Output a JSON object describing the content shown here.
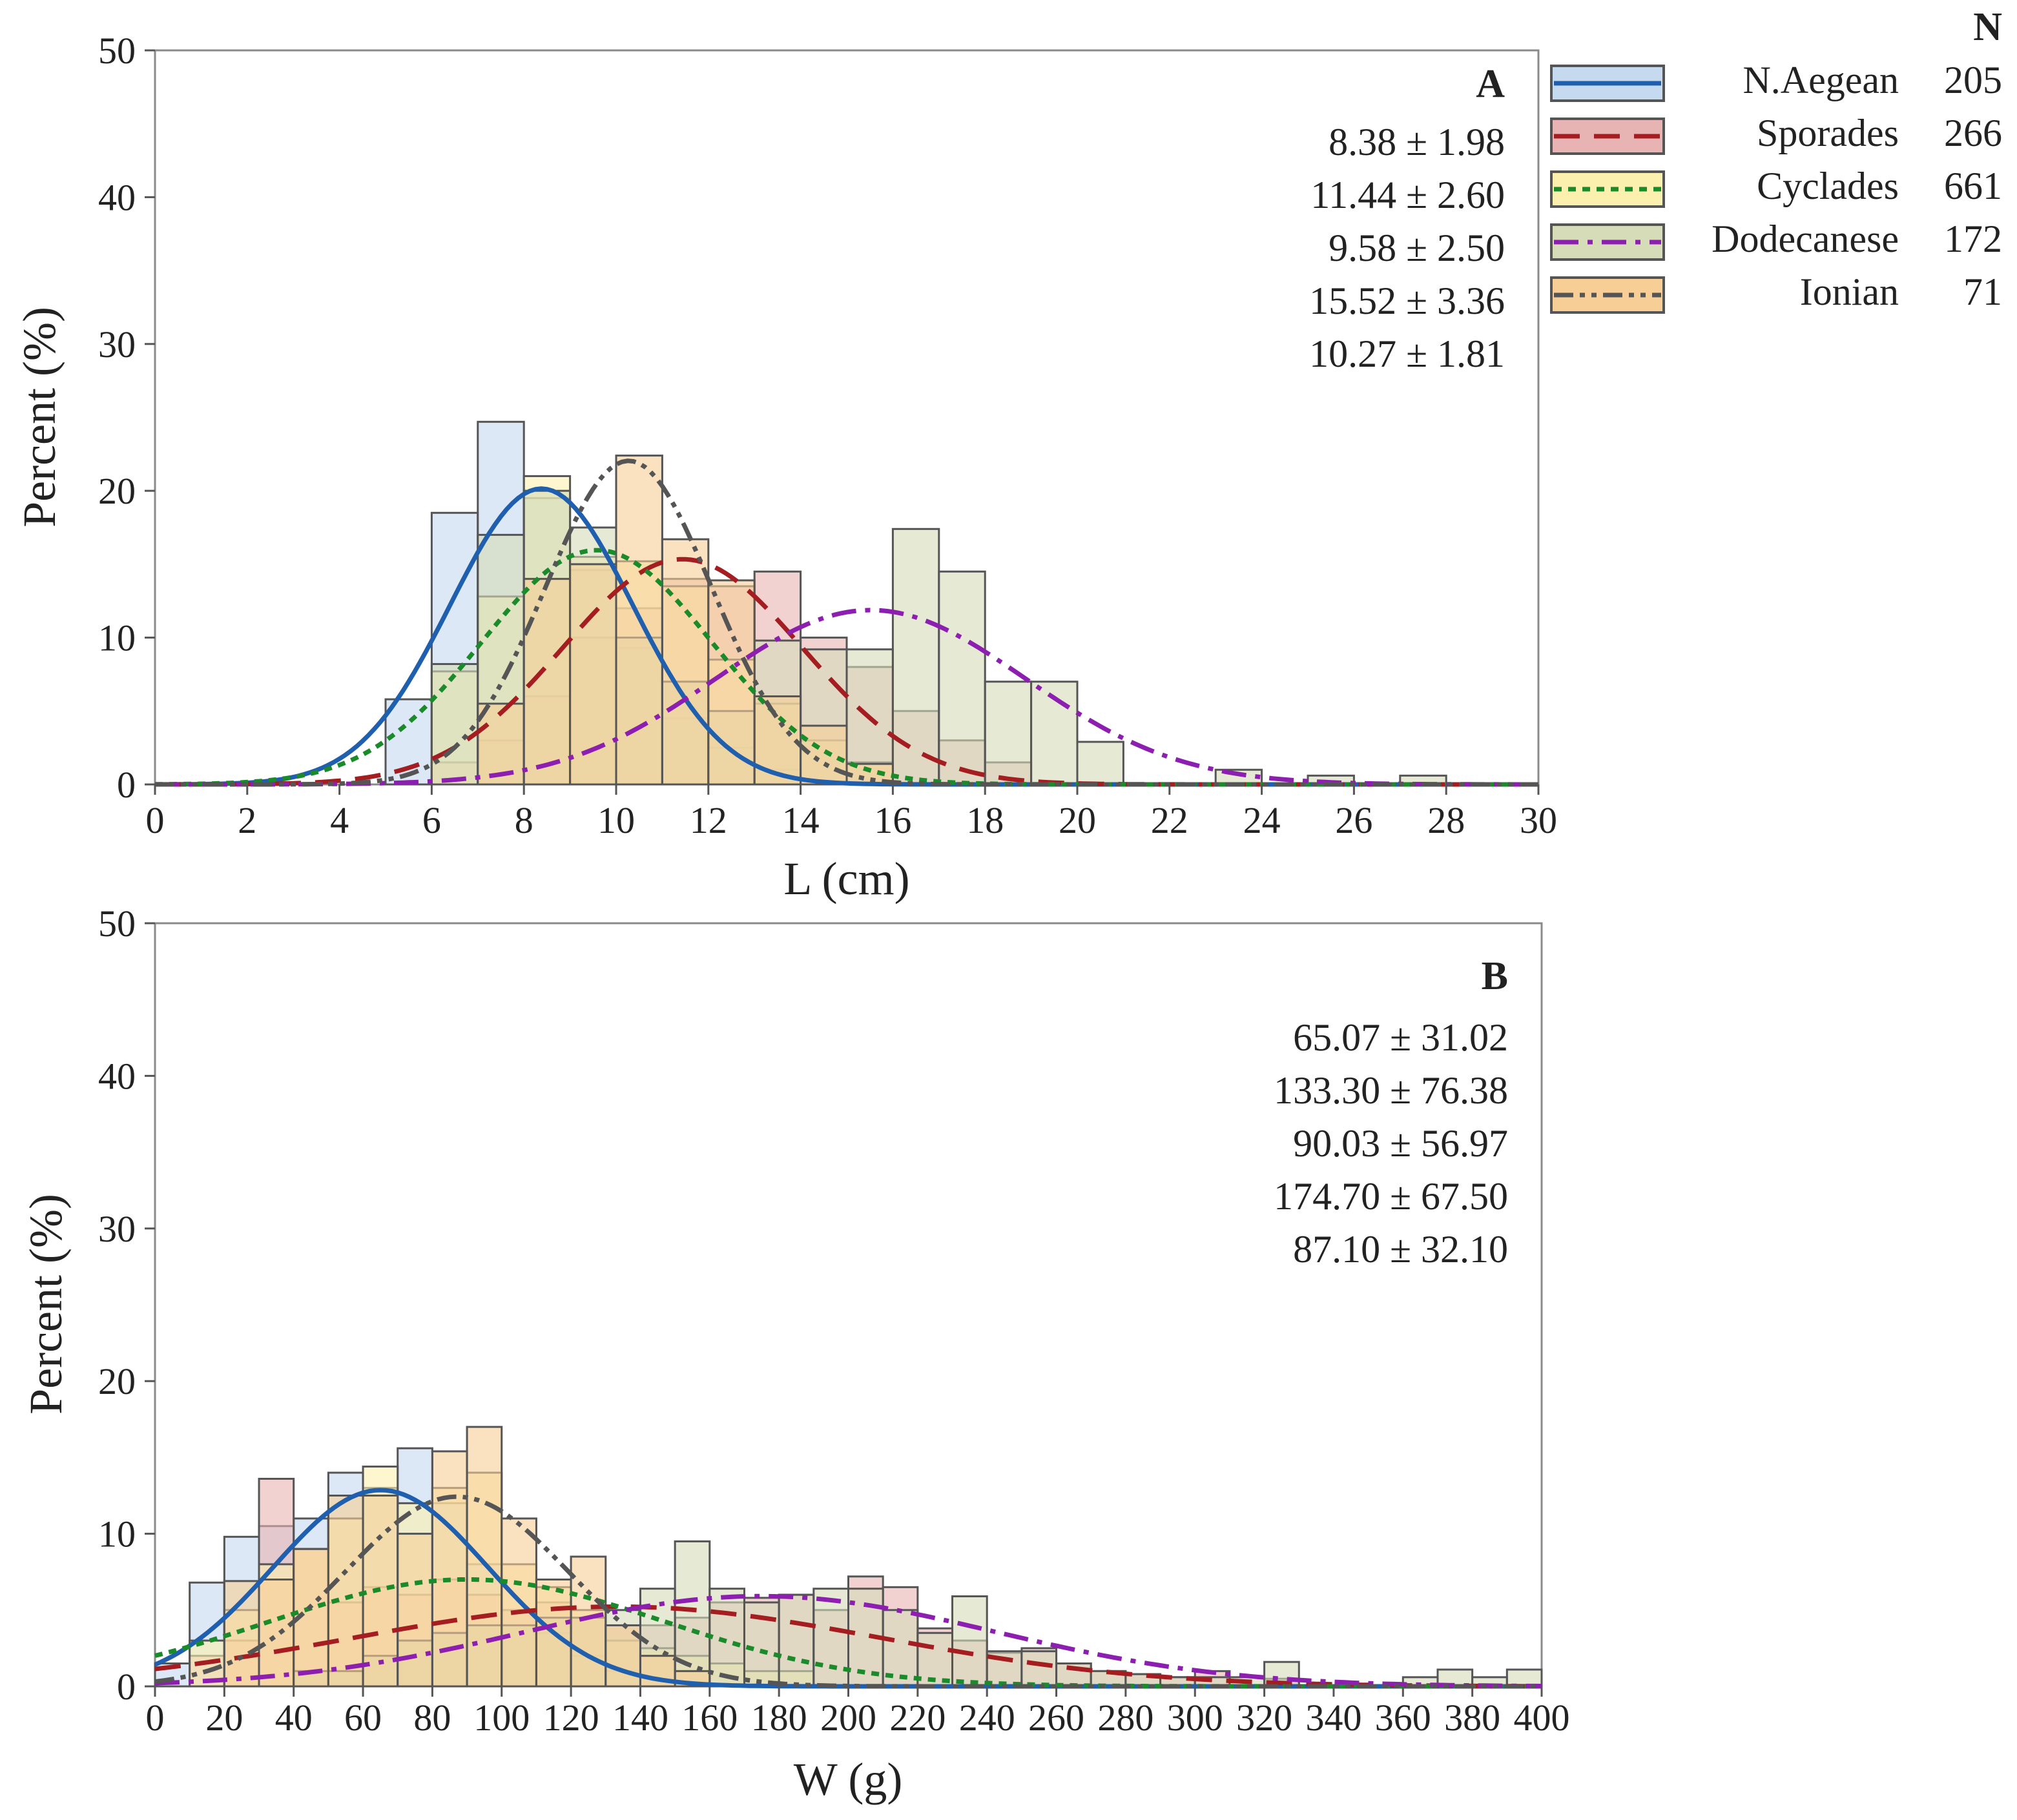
{
  "chart_data": [
    {
      "type": "bar",
      "panel_label": "A",
      "xlabel": "L (cm)",
      "ylabel": "Percent (%)",
      "xlim": [
        0,
        30
      ],
      "ylim": [
        0,
        50
      ],
      "x_ticks": [
        0,
        2,
        4,
        6,
        8,
        10,
        12,
        14,
        16,
        18,
        20,
        22,
        24,
        26,
        28,
        30
      ],
      "y_ticks": [
        0,
        10,
        20,
        30,
        40,
        50
      ],
      "bin_width": 1,
      "stats": [
        "8.38 ± 1.98",
        "11.44 ± 2.60",
        "9.58 ± 2.50",
        "15.52 ± 3.36",
        "10.27 ± 1.81"
      ],
      "series": [
        {
          "name": "N.Aegean",
          "fit_mean": 8.38,
          "fit_sd": 1.98,
          "bins": [
            [
              5,
              5.8
            ],
            [
              6,
              18.5
            ],
            [
              7,
              24.7
            ],
            [
              8,
              19.5
            ],
            [
              9,
              14.6
            ],
            [
              10,
              9.3
            ],
            [
              11,
              4.5
            ],
            [
              12,
              2.5
            ],
            [
              13,
              1.0
            ]
          ]
        },
        {
          "name": "Sporades",
          "fit_mean": 11.44,
          "fit_sd": 2.6,
          "bins": [
            [
              6,
              1.5
            ],
            [
              7,
              3.0
            ],
            [
              8,
              6.0
            ],
            [
              9,
              10.0
            ],
            [
              10,
              12.0
            ],
            [
              11,
              14.0
            ],
            [
              12,
              13.5
            ],
            [
              13,
              14.5
            ],
            [
              14,
              10.0
            ],
            [
              15,
              8.0
            ],
            [
              16,
              5.0
            ],
            [
              17,
              3.0
            ],
            [
              18,
              1.5
            ]
          ]
        },
        {
          "name": "Cyclades",
          "fit_mean": 9.58,
          "fit_sd": 2.5,
          "bins": [
            [
              6,
              7.7
            ],
            [
              7,
              12.8
            ],
            [
              8,
              21.0
            ],
            [
              9,
              15.5
            ],
            [
              10,
              15.2
            ],
            [
              11,
              13.5
            ],
            [
              12,
              8.5
            ],
            [
              13,
              5.5
            ],
            [
              14,
              3.0
            ],
            [
              15,
              1.5
            ]
          ]
        },
        {
          "name": "Dodecanese",
          "fit_mean": 15.52,
          "fit_sd": 3.36,
          "bins": [
            [
              6,
              8.2
            ],
            [
              7,
              17.0
            ],
            [
              8,
              20.0
            ],
            [
              9,
              17.5
            ],
            [
              10,
              10.0
            ],
            [
              11,
              7.0
            ],
            [
              12,
              5.0
            ],
            [
              13,
              9.8
            ],
            [
              14,
              9.2
            ],
            [
              15,
              9.2
            ],
            [
              16,
              17.4
            ],
            [
              17,
              14.5
            ],
            [
              18,
              7.0
            ],
            [
              19,
              7.0
            ],
            [
              20,
              2.9
            ],
            [
              23,
              1.0
            ],
            [
              25,
              0.6
            ],
            [
              27,
              0.6
            ]
          ]
        },
        {
          "name": "Ionian",
          "fit_mean": 10.27,
          "fit_sd": 1.81,
          "bins": [
            [
              7,
              5.5
            ],
            [
              8,
              14.0
            ],
            [
              9,
              15.0
            ],
            [
              10,
              22.4
            ],
            [
              11,
              16.7
            ],
            [
              12,
              13.9
            ],
            [
              13,
              6.0
            ],
            [
              14,
              4.0
            ],
            [
              15,
              1.4
            ]
          ]
        }
      ]
    },
    {
      "type": "bar",
      "panel_label": "B",
      "xlabel": "W (g)",
      "ylabel": "Percent (%)",
      "xlim": [
        0,
        400
      ],
      "ylim": [
        0,
        50
      ],
      "x_ticks": [
        0,
        20,
        40,
        60,
        80,
        100,
        120,
        140,
        160,
        180,
        200,
        220,
        240,
        260,
        280,
        300,
        320,
        340,
        360,
        380,
        400
      ],
      "y_ticks": [
        0,
        10,
        20,
        30,
        40,
        50
      ],
      "bin_width": 10,
      "stats": [
        "65.07 ± 31.02",
        "133.30 ± 76.38",
        "90.03 ± 56.97",
        "174.70 ± 67.50",
        "87.10 ± 32.10"
      ],
      "series": [
        {
          "name": "N.Aegean",
          "fit_mean": 65.07,
          "fit_sd": 31.02,
          "bins": [
            [
              0,
              1.5
            ],
            [
              10,
              6.8
            ],
            [
              20,
              9.8
            ],
            [
              30,
              10.5
            ],
            [
              40,
              11.0
            ],
            [
              50,
              14.0
            ],
            [
              60,
              13.0
            ],
            [
              70,
              15.6
            ],
            [
              80,
              12.0
            ],
            [
              90,
              8.0
            ],
            [
              100,
              5.0
            ],
            [
              110,
              3.5
            ],
            [
              120,
              2.0
            ],
            [
              130,
              1.0
            ]
          ]
        },
        {
          "name": "Sporades",
          "fit_mean": 133.3,
          "fit_sd": 76.38,
          "bins": [
            [
              10,
              2.0
            ],
            [
              20,
              3.0
            ],
            [
              30,
              13.6
            ],
            [
              40,
              9.0
            ],
            [
              50,
              5.5
            ],
            [
              60,
              6.5
            ],
            [
              70,
              6.0
            ],
            [
              80,
              7.0
            ],
            [
              90,
              6.0
            ],
            [
              100,
              5.0
            ],
            [
              110,
              5.5
            ],
            [
              120,
              4.5
            ],
            [
              130,
              4.0
            ],
            [
              140,
              4.0
            ],
            [
              150,
              4.5
            ],
            [
              160,
              5.5
            ],
            [
              170,
              5.8
            ],
            [
              180,
              6.0
            ],
            [
              190,
              5.0
            ],
            [
              200,
              7.2
            ],
            [
              210,
              6.5
            ],
            [
              220,
              3.8
            ],
            [
              230,
              3.0
            ],
            [
              240,
              2.2
            ],
            [
              250,
              2.5
            ],
            [
              260,
              1.5
            ],
            [
              270,
              1.0
            ],
            [
              280,
              0.8
            ],
            [
              290,
              0.6
            ],
            [
              300,
              1.0
            ],
            [
              320,
              0.5
            ]
          ]
        },
        {
          "name": "Cyclades",
          "fit_mean": 90.03,
          "fit_sd": 56.97,
          "bins": [
            [
              10,
              3.0
            ],
            [
              20,
              5.0
            ],
            [
              30,
              8.0
            ],
            [
              40,
              9.0
            ],
            [
              50,
              11.0
            ],
            [
              60,
              14.4
            ],
            [
              70,
              12.0
            ],
            [
              80,
              13.0
            ],
            [
              90,
              14.0
            ],
            [
              100,
              8.0
            ],
            [
              110,
              6.5
            ],
            [
              120,
              5.0
            ],
            [
              130,
              3.0
            ],
            [
              140,
              2.5
            ],
            [
              150,
              2.0
            ],
            [
              160,
              1.5
            ],
            [
              170,
              1.0
            ],
            [
              180,
              1.0
            ]
          ]
        },
        {
          "name": "Dodecanese",
          "fit_mean": 174.7,
          "fit_sd": 67.5,
          "bins": [
            [
              40,
              1.0
            ],
            [
              50,
              1.0
            ],
            [
              60,
              2.0
            ],
            [
              70,
              3.0
            ],
            [
              80,
              3.5
            ],
            [
              90,
              4.0
            ],
            [
              100,
              4.0
            ],
            [
              110,
              4.5
            ],
            [
              120,
              4.5
            ],
            [
              130,
              5.0
            ],
            [
              140,
              6.4
            ],
            [
              150,
              9.5
            ],
            [
              160,
              6.4
            ],
            [
              170,
              5.5
            ],
            [
              180,
              6.0
            ],
            [
              190,
              6.4
            ],
            [
              200,
              6.4
            ],
            [
              210,
              5.0
            ],
            [
              220,
              3.5
            ],
            [
              230,
              5.9
            ],
            [
              240,
              2.3
            ],
            [
              250,
              2.3
            ],
            [
              260,
              1.5
            ],
            [
              270,
              1.0
            ],
            [
              280,
              0.8
            ],
            [
              290,
              0.6
            ],
            [
              300,
              0.6
            ],
            [
              310,
              0.6
            ],
            [
              320,
              1.6
            ],
            [
              360,
              0.6
            ],
            [
              370,
              1.1
            ],
            [
              380,
              0.6
            ],
            [
              390,
              1.1
            ]
          ]
        },
        {
          "name": "Ionian",
          "fit_mean": 87.1,
          "fit_sd": 32.1,
          "bins": [
            [
              20,
              6.9
            ],
            [
              30,
              7.0
            ],
            [
              40,
              9.0
            ],
            [
              50,
              12.5
            ],
            [
              60,
              12.5
            ],
            [
              70,
              10.0
            ],
            [
              80,
              15.4
            ],
            [
              90,
              17.0
            ],
            [
              100,
              11.0
            ],
            [
              110,
              7.0
            ],
            [
              120,
              8.5
            ],
            [
              130,
              4.0
            ],
            [
              140,
              2.0
            ],
            [
              150,
              1.0
            ]
          ]
        }
      ]
    }
  ],
  "legend": {
    "header": "N",
    "entries": [
      {
        "name": "N.Aegean",
        "n": "205",
        "fill": "#c5d9ef",
        "line": "#1f5fae",
        "dash": ""
      },
      {
        "name": "Sporades",
        "n": "266",
        "fill": "#e8b4b3",
        "line": "#a31d21",
        "dash": "40,22"
      },
      {
        "name": "Cyclades",
        "n": "661",
        "fill": "#fbf0ad",
        "line": "#1a8a2a",
        "dash": "12,10"
      },
      {
        "name": "Dodecanese",
        "n": "172",
        "fill": "#d6dcb8",
        "line": "#8d1fb0",
        "dash": "38,14,8,14"
      },
      {
        "name": "Ionian",
        "n": "71",
        "fill": "#f7cf96",
        "line": "#555555",
        "dash": "30,10,8,10,8,10"
      }
    ]
  }
}
